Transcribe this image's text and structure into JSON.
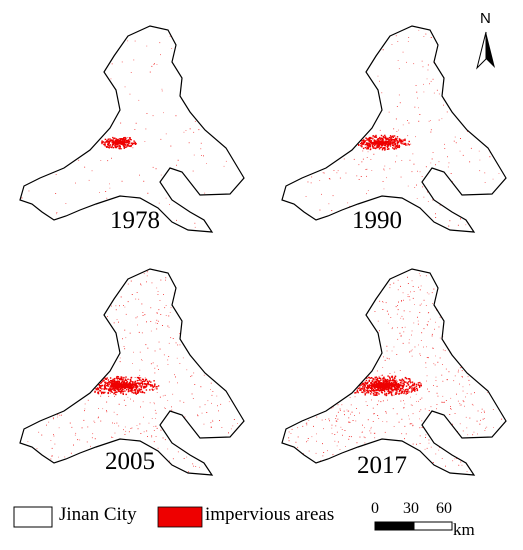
{
  "panels": [
    {
      "year": "1978",
      "density": 0.18,
      "core": 0.35,
      "east": 0.1
    },
    {
      "year": "1990",
      "density": 0.32,
      "core": 0.6,
      "east": 0.3
    },
    {
      "year": "2005",
      "density": 0.55,
      "core": 0.9,
      "east": 0.7
    },
    {
      "year": "2017",
      "density": 0.75,
      "core": 1.0,
      "east": 0.85
    }
  ],
  "north": {
    "label": "N",
    "icon": "north-arrow-icon"
  },
  "legend": {
    "boundary_label": "Jinan City",
    "impervious_label": "impervious areas",
    "impervious_color": "#ee0000",
    "boundary_color": "#000000"
  },
  "scale": {
    "ticks": [
      "0",
      "30",
      "60"
    ],
    "unit": "km"
  }
}
